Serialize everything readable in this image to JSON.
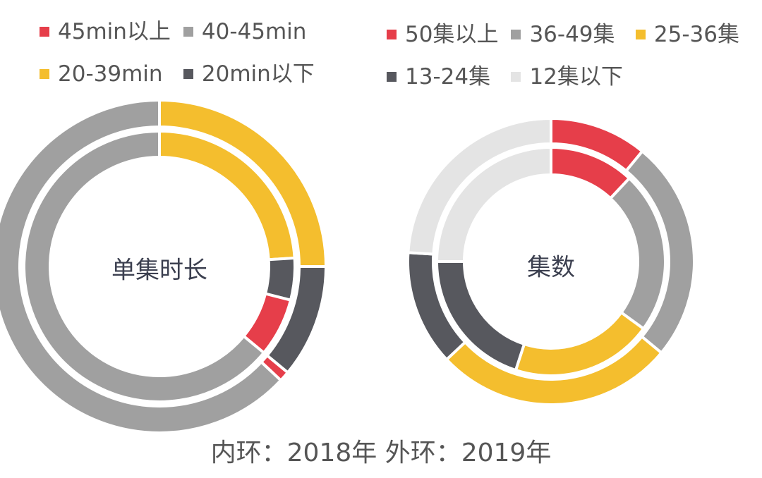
{
  "chart_data": [
    {
      "type": "donut",
      "center_label": "单集时长",
      "legend": [
        {
          "label": "45min以上",
          "color": "#e63e4a"
        },
        {
          "label": "40-45min",
          "color": "#a0a0a0"
        },
        {
          "label": "20-39min",
          "color": "#f4be2e"
        },
        {
          "label": "20min以下",
          "color": "#57585e"
        }
      ],
      "categories": [
        "45min以上",
        "40-45min",
        "20-39min",
        "20min以下"
      ],
      "series": [
        {
          "ring": "inner",
          "values": [
            7,
            64,
            24,
            5
          ]
        },
        {
          "ring": "outer",
          "values": [
            1,
            63,
            25,
            11
          ]
        }
      ],
      "ring_order": [
        "20-39min",
        "20min以下",
        "45min以上",
        "40-45min"
      ]
    },
    {
      "type": "donut",
      "center_label": "集数",
      "legend": [
        {
          "label": "50集以上",
          "color": "#e63e4a"
        },
        {
          "label": "36-49集",
          "color": "#a0a0a0"
        },
        {
          "label": "25-36集",
          "color": "#f4be2e"
        },
        {
          "label": "13-24集",
          "color": "#57585e"
        },
        {
          "label": "12集以下",
          "color": "#e4e4e4"
        }
      ],
      "categories": [
        "50集以上",
        "36-49集",
        "25-36集",
        "13-24集",
        "12集以下"
      ],
      "series": [
        {
          "ring": "inner",
          "values": [
            12,
            23,
            20,
            20,
            25
          ]
        },
        {
          "ring": "outer",
          "values": [
            11,
            25,
            27,
            13,
            24
          ]
        }
      ],
      "ring_order": [
        "50集以上",
        "36-49集",
        "25-36集",
        "13-24集",
        "12集以下"
      ]
    }
  ],
  "footnote": "内环：2018年  外环：2019年"
}
